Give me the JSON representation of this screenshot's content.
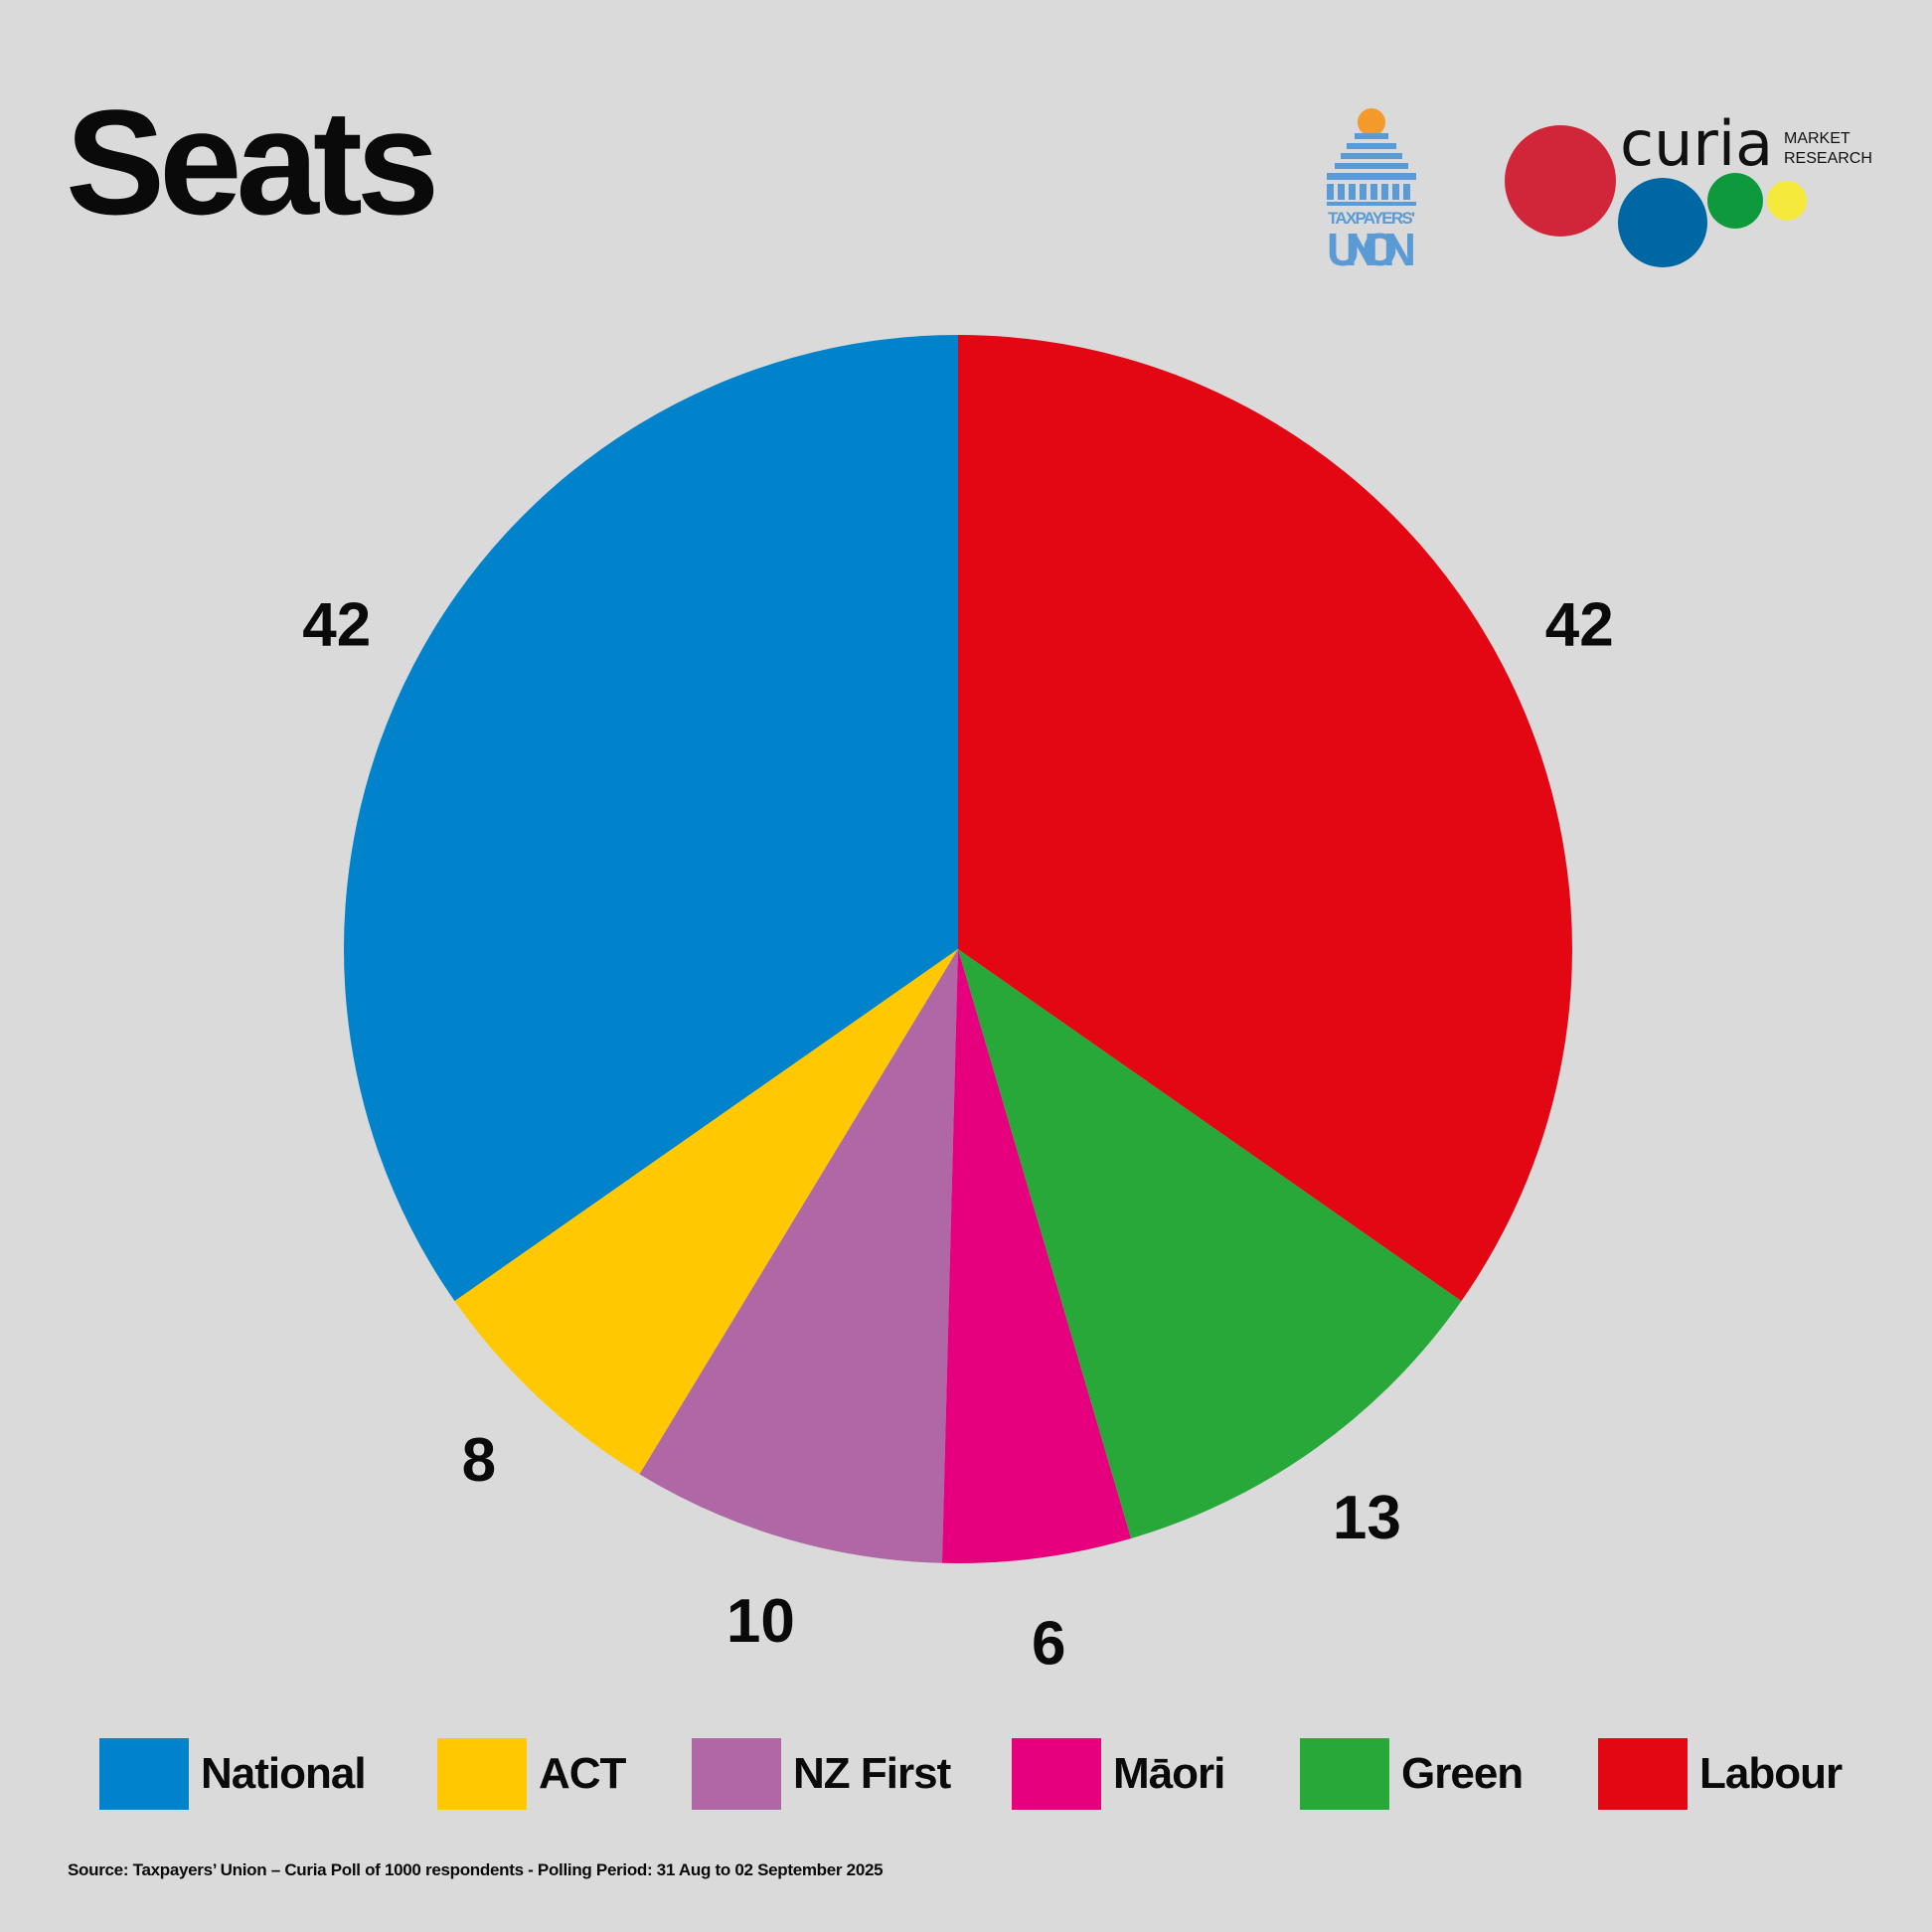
{
  "header": {
    "title": "Seats"
  },
  "logos": {
    "taxpayers_union": {
      "line1": "TAXPAYERS'",
      "line2": "UNION",
      "color": "#5b9bd5",
      "accent": "#f39a2b"
    },
    "curia": {
      "wordmark": "curia",
      "line1": "MARKET",
      "line2": "RESEARCH",
      "dot_colors": [
        "#d1263a",
        "#0067a5",
        "#0e9a3c",
        "#f5e93c"
      ]
    }
  },
  "chart_data": {
    "type": "pie",
    "title": "Seats",
    "start": "top",
    "direction": "counterclockwise",
    "slices": [
      {
        "name": "National",
        "value": 42,
        "color": "#0083cb"
      },
      {
        "name": "ACT",
        "value": 8,
        "color": "#ffc800"
      },
      {
        "name": "NZ First",
        "value": 10,
        "color": "#b067a6"
      },
      {
        "name": "Māori",
        "value": 6,
        "color": "#e6007e"
      },
      {
        "name": "Green",
        "value": 13,
        "color": "#29a83a"
      },
      {
        "name": "Labour",
        "value": 42,
        "color": "#e30613"
      }
    ],
    "legend_position": "bottom"
  },
  "footer": {
    "source": "Source: Taxpayers’ Union – Curia Poll of 1000 respondents -  Polling Period: 31 Aug to 02 September 2025"
  }
}
